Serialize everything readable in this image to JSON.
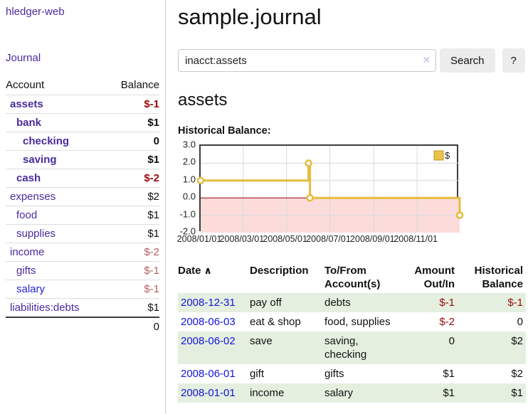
{
  "window": {
    "title": "sample.journal"
  },
  "sidebar": {
    "brand": "hledger-web",
    "nav_journal": "Journal",
    "accounts": {
      "headers": {
        "account": "Account",
        "balance": "Balance"
      },
      "rows": [
        {
          "name": "assets",
          "depth": 1,
          "bold": true,
          "balance": "$-1",
          "neg": "strong"
        },
        {
          "name": "bank",
          "depth": 2,
          "bold": true,
          "balance": "$1"
        },
        {
          "name": "checking",
          "depth": 3,
          "bold": true,
          "balance": "0"
        },
        {
          "name": "saving",
          "depth": 3,
          "bold": true,
          "balance": "$1"
        },
        {
          "name": "cash",
          "depth": 2,
          "bold": true,
          "balance": "$-2",
          "neg": "strong"
        },
        {
          "name": "expenses",
          "depth": 1,
          "bold": false,
          "balance": "$2"
        },
        {
          "name": "food",
          "depth": 2,
          "bold": false,
          "balance": "$1"
        },
        {
          "name": "supplies",
          "depth": 2,
          "bold": false,
          "balance": "$1"
        },
        {
          "name": "income",
          "depth": 1,
          "bold": false,
          "balance": "$-2",
          "neg": "soft"
        },
        {
          "name": "gifts",
          "depth": 2,
          "bold": false,
          "balance": "$-1",
          "neg": "soft"
        },
        {
          "name": "salary",
          "depth": 2,
          "bold": false,
          "balance": "$-1",
          "neg": "soft",
          "link_blue": true
        },
        {
          "name": "liabilities:debts",
          "depth": 1,
          "bold": false,
          "balance": "$1"
        }
      ],
      "total": "0"
    }
  },
  "search": {
    "value": "inacct:assets",
    "placeholder": "",
    "clear_icon": "×",
    "button": "Search",
    "help_button": "?"
  },
  "page": {
    "heading": "assets",
    "chart_label": "Historical Balance:"
  },
  "chart_data": {
    "type": "line-step",
    "title": "Historical Balance:",
    "series": [
      {
        "name": "$",
        "points": [
          [
            "2008-01-01",
            1
          ],
          [
            "2008-06-01",
            2
          ],
          [
            "2008-06-03",
            0
          ],
          [
            "2008-12-31",
            -1
          ]
        ]
      }
    ],
    "x_range": [
      "2008-01-01",
      "2008-12-31"
    ],
    "x_ticks": [
      {
        "date": "2008-01-01",
        "label": "2008/01/01"
      },
      {
        "date": "2008-03-01",
        "label": "2008/03/01"
      },
      {
        "date": "2008-05-01",
        "label": "2008/05/01"
      },
      {
        "date": "2008-07-01",
        "label": "2008/07/01"
      },
      {
        "date": "2008-09-01",
        "label": "2008/09/01"
      },
      {
        "date": "2008-11-01",
        "label": "2008/11/01"
      }
    ],
    "y_ticks": [
      3.0,
      2.0,
      1.0,
      0.0,
      -1.0,
      -2.0
    ],
    "ylim": [
      -2,
      3
    ],
    "grid": true,
    "legend": {
      "label": "$",
      "position": "top-right"
    }
  },
  "transactions": {
    "headers": [
      {
        "lines": [
          "Date"
        ],
        "align": "left",
        "sortable": true
      },
      {
        "lines": [
          "Description"
        ],
        "align": "left"
      },
      {
        "lines": [
          "To/From",
          "Account(s)"
        ],
        "align": "left"
      },
      {
        "lines": [
          "Amount",
          "Out/In"
        ],
        "align": "right"
      },
      {
        "lines": [
          "Historical",
          "Balance"
        ],
        "align": "right"
      }
    ],
    "sort_icon": "∧",
    "rows": [
      {
        "date": "2008-12-31",
        "description": "pay off",
        "accounts": "debts",
        "amount": "$-1",
        "amount_neg": true,
        "balance": "$-1",
        "balance_neg": true
      },
      {
        "date": "2008-06-03",
        "description": "eat & shop",
        "accounts": "food, supplies",
        "amount": "$-2",
        "amount_neg": true,
        "balance": "0",
        "balance_neg": false
      },
      {
        "date": "2008-06-02",
        "description": "save",
        "accounts": "saving, checking",
        "amount": "0",
        "amount_neg": false,
        "balance": "$2",
        "balance_neg": false
      },
      {
        "date": "2008-06-01",
        "description": "gift",
        "accounts": "gifts",
        "amount": "$1",
        "amount_neg": false,
        "balance": "$2",
        "balance_neg": false
      },
      {
        "date": "2008-01-01",
        "description": "income",
        "accounts": "salary",
        "amount": "$1",
        "amount_neg": false,
        "balance": "$1",
        "balance_neg": false
      }
    ]
  },
  "colors": {
    "link_purple": "#4a2b9e",
    "link_blue": "#1515dd",
    "negative_strong": "#970b0b",
    "negative_soft": "#b25f5f",
    "row_stripe_green": "#e4efdf",
    "chart_line_gold": "#e5bc3c",
    "chart_marker_fill": "#ffffff",
    "legend_swatch_fill": "#e8c548",
    "legend_swatch_border": "#bd9726",
    "chart_negative_region": "#fcdbdb",
    "chart_zero_line": "#990000",
    "chart_grid": "#d9d9d9",
    "chart_border": "#3d3d3d"
  }
}
